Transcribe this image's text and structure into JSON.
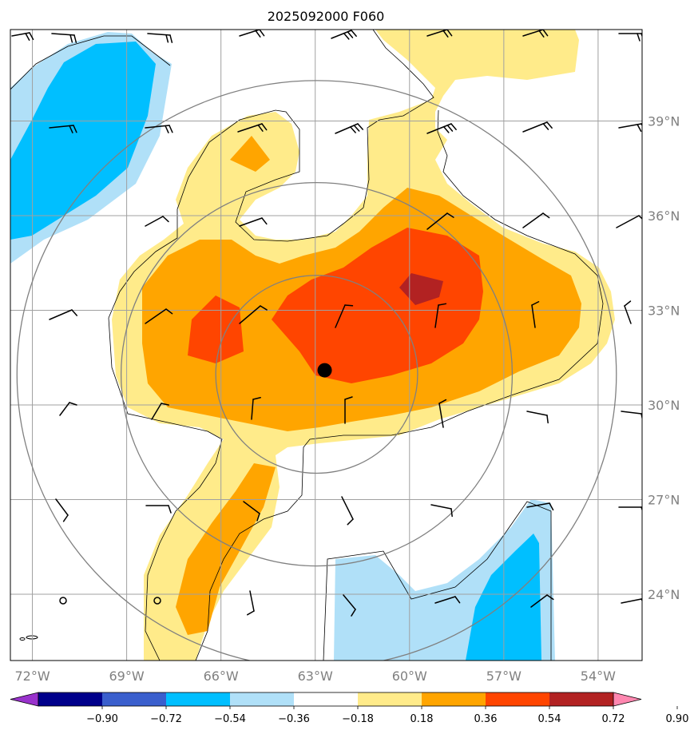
{
  "title": "2025092000 F060",
  "map": {
    "lon_labels": [
      "72°W",
      "69°W",
      "66°W",
      "63°W",
      "60°W",
      "57°W",
      "54°W"
    ],
    "lat_labels": [
      "39°N",
      "36°N",
      "33°N",
      "30°N",
      "27°N",
      "24°N"
    ],
    "lon_values": [
      -72,
      -69,
      -66,
      -63,
      -60,
      -57,
      -54
    ],
    "lat_values": [
      39,
      36,
      33,
      30,
      27,
      24
    ],
    "extent": {
      "lon_min": -72.7,
      "lon_max": -52.6,
      "lat_min": 21.9,
      "lat_max": 41.9
    },
    "center_marker": {
      "lon": -62.7,
      "lat": 31.1
    },
    "range_ring_radii_deg": [
      3.2,
      6.2,
      9.5
    ],
    "grid": true
  },
  "colorbar": {
    "levels": [
      "−0.90",
      "−0.72",
      "−0.54",
      "−0.36",
      "−0.18",
      "0.18",
      "0.36",
      "0.54",
      "0.72",
      "0.90"
    ],
    "colors": [
      "#9932cc",
      "#00008b",
      "#3a5fcd",
      "#00bfff",
      "#b0e0f8",
      "#ffffff",
      "#ffeb8a",
      "#ffa500",
      "#ff4500",
      "#b22222",
      "#ff87b0"
    ],
    "extend": "both"
  },
  "colors": {
    "grid": "#a0a0a0",
    "ring": "#808080",
    "contour": "#000000"
  }
}
